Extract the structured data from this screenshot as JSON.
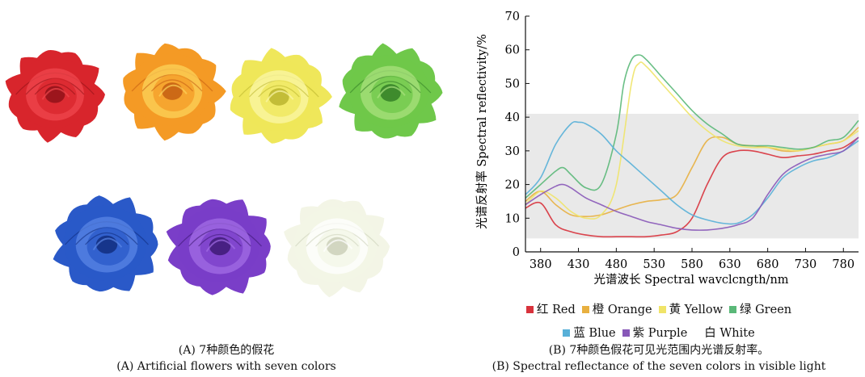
{
  "left_panel": {
    "caption_cn": "(A) 7种颜色的假花",
    "caption_en": "(A) Artificial flowers with seven colors",
    "flowers": [
      {
        "name": "red",
        "color": "#d8252c",
        "dark": "#8c1016",
        "light": "#f0474d"
      },
      {
        "name": "orange",
        "color": "#f49a25",
        "dark": "#c25a10",
        "light": "#fcd35a"
      },
      {
        "name": "yellow",
        "color": "#efe75a",
        "dark": "#b8b22a",
        "light": "#fbf7a8"
      },
      {
        "name": "green",
        "color": "#6fc84a",
        "dark": "#2f7a24",
        "light": "#a9e27e"
      },
      {
        "name": "blue",
        "color": "#2a59c8",
        "dark": "#0f2a7a",
        "light": "#5a86e6"
      },
      {
        "name": "purple",
        "color": "#7a3ec8",
        "dark": "#3a1670",
        "light": "#a36ee6"
      },
      {
        "name": "white",
        "color": "#f3f5e6",
        "dark": "#c9cdb6",
        "light": "#ffffff"
      }
    ]
  },
  "chart_data": {
    "type": "line",
    "title": "",
    "xlabel": "光谱波长 Spectral wavclcngth/nm",
    "ylabel": "光谱反射率 Spectral reflectivity/%",
    "xlim": [
      360,
      800
    ],
    "ylim": [
      0,
      70
    ],
    "xticks": [
      380,
      430,
      480,
      530,
      580,
      630,
      680,
      730,
      780
    ],
    "yticks": [
      0,
      10,
      20,
      30,
      40,
      50,
      60,
      70
    ],
    "plot_background": "#e9e9e9",
    "series": [
      {
        "name": "红 Red",
        "color": "#d8323c",
        "x": [
          360,
          380,
          400,
          420,
          440,
          460,
          480,
          500,
          520,
          540,
          560,
          580,
          600,
          620,
          640,
          660,
          680,
          700,
          720,
          740,
          760,
          780,
          800
        ],
        "y": [
          13,
          14.5,
          8,
          6,
          5,
          4.5,
          4.5,
          4.5,
          4.5,
          5,
          6,
          10,
          20,
          28,
          30,
          30,
          29,
          28,
          28.5,
          29,
          30,
          31,
          34
        ]
      },
      {
        "name": "橙 Orange",
        "color": "#e8b040",
        "x": [
          360,
          380,
          400,
          420,
          440,
          460,
          480,
          500,
          520,
          540,
          560,
          580,
          600,
          620,
          640,
          660,
          680,
          700,
          720,
          740,
          760,
          780,
          800
        ],
        "y": [
          15,
          18,
          14,
          11,
          10.5,
          11,
          12.5,
          14,
          15,
          15.5,
          17,
          25,
          33,
          34,
          32,
          31.5,
          31,
          30,
          30,
          31,
          32,
          33,
          37
        ]
      },
      {
        "name": "黄 Yellow",
        "color": "#f0e468",
        "x": [
          360,
          380,
          400,
          420,
          440,
          460,
          480,
          500,
          510,
          520,
          540,
          560,
          580,
          600,
          620,
          640,
          660,
          680,
          700,
          720,
          740,
          760,
          780,
          800
        ],
        "y": [
          14,
          18,
          16,
          12,
          10,
          11,
          20,
          50,
          56,
          55,
          50,
          45,
          40,
          36,
          33,
          31.5,
          31,
          31,
          30.5,
          30,
          31,
          32,
          33,
          36
        ]
      },
      {
        "name": "绿 Green",
        "color": "#5ab878",
        "x": [
          360,
          380,
          400,
          410,
          420,
          440,
          460,
          480,
          490,
          500,
          510,
          520,
          540,
          560,
          580,
          600,
          620,
          640,
          660,
          680,
          700,
          720,
          740,
          760,
          780,
          800
        ],
        "y": [
          16,
          20,
          24,
          25,
          23,
          19,
          20,
          35,
          50,
          57,
          58.5,
          57,
          52,
          47,
          42,
          38,
          35,
          32,
          31.5,
          31.5,
          31,
          30.5,
          31,
          33,
          34,
          39
        ]
      },
      {
        "name": "蓝 Blue",
        "color": "#58b0d8",
        "x": [
          360,
          380,
          400,
          420,
          430,
          440,
          460,
          480,
          500,
          520,
          540,
          560,
          580,
          600,
          620,
          640,
          660,
          680,
          700,
          720,
          740,
          760,
          780,
          800
        ],
        "y": [
          17,
          22,
          32,
          38,
          38.5,
          38,
          35,
          30,
          26,
          22,
          18,
          14,
          11,
          9.5,
          8.5,
          8.5,
          11,
          16,
          22,
          25,
          27,
          28,
          30,
          33
        ]
      },
      {
        "name": "紫 Purple",
        "color": "#8858b8",
        "x": [
          360,
          380,
          400,
          410,
          420,
          440,
          460,
          480,
          500,
          520,
          540,
          560,
          580,
          600,
          620,
          640,
          660,
          680,
          700,
          720,
          740,
          760,
          780,
          800
        ],
        "y": [
          14,
          17,
          19.5,
          20,
          19,
          16,
          14,
          12,
          10.5,
          9,
          8,
          7,
          6.5,
          6.5,
          7,
          8,
          10,
          17,
          23,
          26,
          28,
          29,
          30,
          34
        ]
      },
      {
        "name": "白 White",
        "color": "#ffffff",
        "x": [
          360,
          800
        ],
        "y": [
          4,
          4
        ]
      }
    ]
  }
}
